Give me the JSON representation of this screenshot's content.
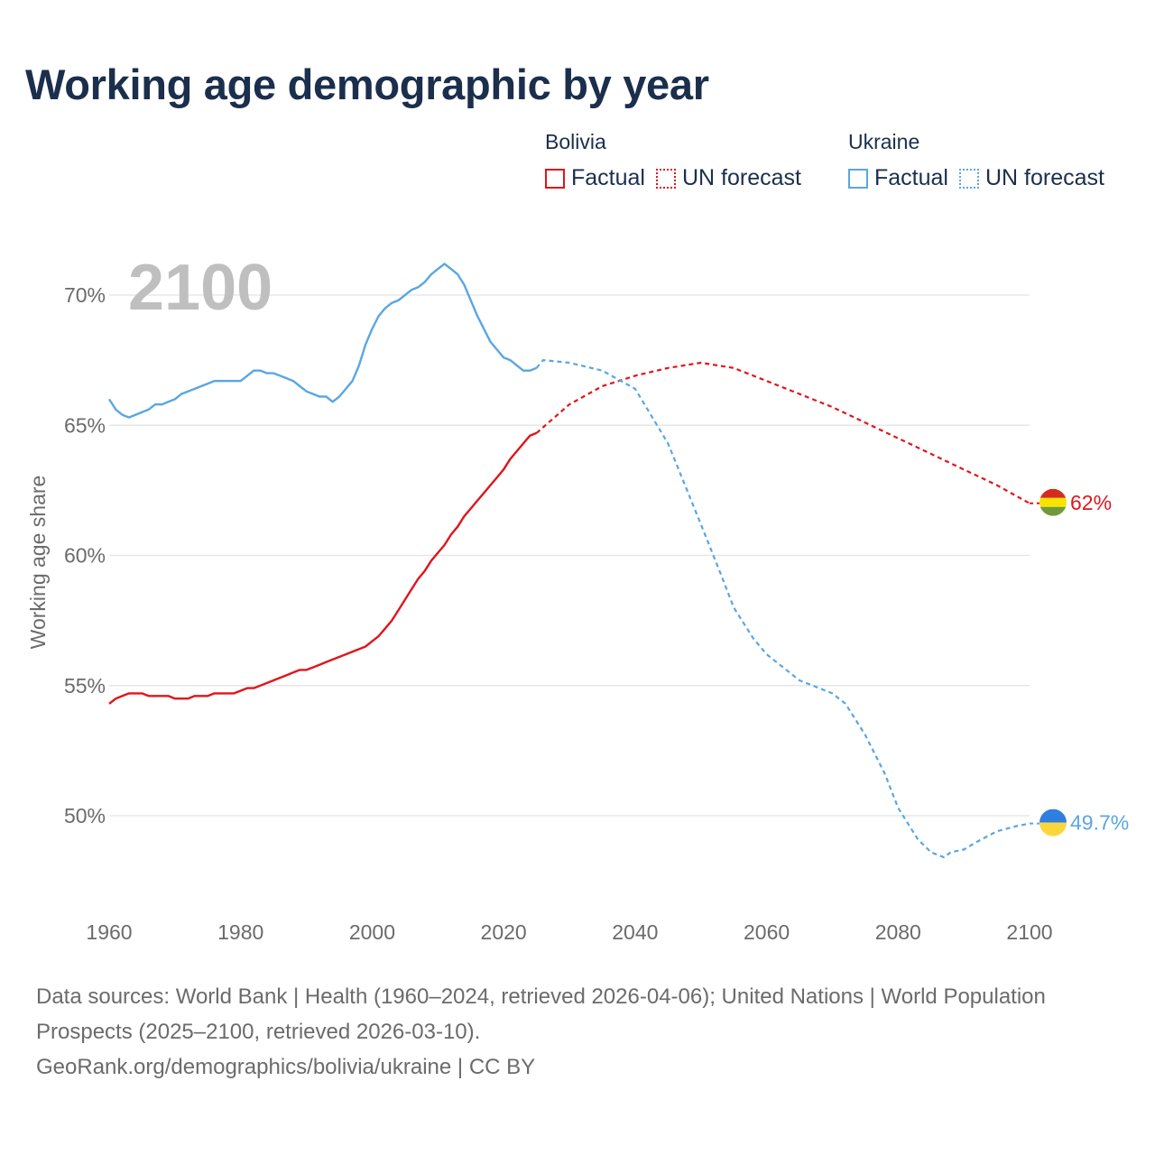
{
  "title": "Working age demographic by year",
  "legend": {
    "groups": [
      {
        "name": "Bolivia",
        "factual_label": "Factual",
        "forecast_label": "UN forecast",
        "color": "#e0151b"
      },
      {
        "name": "Ukraine",
        "factual_label": "Factual",
        "forecast_label": "UN forecast",
        "color": "#5aa6e3"
      }
    ]
  },
  "footer": {
    "sources": "Data sources: World Bank | Health (1960–2024, retrieved 2026-04-06); United Nations | World Population Prospects (2025–2100, retrieved 2026-03-10).",
    "credit": "GeoRank.org/demographics/bolivia/ukraine | CC BY"
  },
  "chart_data": {
    "type": "line",
    "title": "Working age demographic by year",
    "year_label": "2100",
    "xlabel": "",
    "ylabel": "Working age share",
    "xlim": [
      1960,
      2100
    ],
    "ylim": [
      47,
      72.5
    ],
    "x_ticks": [
      1960,
      1980,
      2000,
      2020,
      2040,
      2060,
      2080,
      2100
    ],
    "y_ticks": [
      50,
      55,
      60,
      65,
      70
    ],
    "y_tick_labels": [
      "50%",
      "55%",
      "60%",
      "65%",
      "70%"
    ],
    "x_tick_labels": [
      "1960",
      "1980",
      "2000",
      "2020",
      "2040",
      "2060",
      "2080",
      "2100"
    ],
    "grid": true,
    "series": [
      {
        "name": "Bolivia",
        "color": "#e0151b",
        "end_label": "62%",
        "factual": {
          "x": [
            1960,
            1961,
            1962,
            1963,
            1964,
            1965,
            1966,
            1967,
            1968,
            1969,
            1970,
            1971,
            1972,
            1973,
            1974,
            1975,
            1976,
            1977,
            1978,
            1979,
            1980,
            1981,
            1982,
            1983,
            1984,
            1985,
            1986,
            1987,
            1988,
            1989,
            1990,
            1991,
            1992,
            1993,
            1994,
            1995,
            1996,
            1997,
            1998,
            1999,
            2000,
            2001,
            2002,
            2003,
            2004,
            2005,
            2006,
            2007,
            2008,
            2009,
            2010,
            2011,
            2012,
            2013,
            2014,
            2015,
            2016,
            2017,
            2018,
            2019,
            2020,
            2021,
            2022,
            2023,
            2024,
            2025
          ],
          "y": [
            54.3,
            54.5,
            54.6,
            54.7,
            54.7,
            54.7,
            54.6,
            54.6,
            54.6,
            54.6,
            54.5,
            54.5,
            54.5,
            54.6,
            54.6,
            54.6,
            54.7,
            54.7,
            54.7,
            54.7,
            54.8,
            54.9,
            54.9,
            55.0,
            55.1,
            55.2,
            55.3,
            55.4,
            55.5,
            55.6,
            55.6,
            55.7,
            55.8,
            55.9,
            56.0,
            56.1,
            56.2,
            56.3,
            56.4,
            56.5,
            56.7,
            56.9,
            57.2,
            57.5,
            57.9,
            58.3,
            58.7,
            59.1,
            59.4,
            59.8,
            60.1,
            60.4,
            60.8,
            61.1,
            61.5,
            61.8,
            62.1,
            62.4,
            62.7,
            63.0,
            63.3,
            63.7,
            64.0,
            64.3,
            64.6,
            64.7
          ]
        },
        "forecast": {
          "x": [
            2025,
            2030,
            2035,
            2040,
            2045,
            2050,
            2055,
            2060,
            2065,
            2070,
            2075,
            2080,
            2085,
            2090,
            2095,
            2100
          ],
          "y": [
            64.7,
            65.8,
            66.5,
            66.9,
            67.2,
            67.4,
            67.2,
            66.7,
            66.2,
            65.7,
            65.1,
            64.5,
            63.9,
            63.3,
            62.7,
            62.0
          ]
        }
      },
      {
        "name": "Ukraine",
        "color": "#5aa6e3",
        "end_label": "49.7%",
        "factual": {
          "x": [
            1960,
            1961,
            1962,
            1963,
            1964,
            1965,
            1966,
            1967,
            1968,
            1969,
            1970,
            1971,
            1972,
            1973,
            1974,
            1975,
            1976,
            1977,
            1978,
            1979,
            1980,
            1981,
            1982,
            1983,
            1984,
            1985,
            1986,
            1987,
            1988,
            1989,
            1990,
            1991,
            1992,
            1993,
            1994,
            1995,
            1996,
            1997,
            1998,
            1999,
            2000,
            2001,
            2002,
            2003,
            2004,
            2005,
            2006,
            2007,
            2008,
            2009,
            2010,
            2011,
            2012,
            2013,
            2014,
            2015,
            2016,
            2017,
            2018,
            2019,
            2020,
            2021,
            2022,
            2023,
            2024,
            2025
          ],
          "y": [
            66.0,
            65.6,
            65.4,
            65.3,
            65.4,
            65.5,
            65.6,
            65.8,
            65.8,
            65.9,
            66.0,
            66.2,
            66.3,
            66.4,
            66.5,
            66.6,
            66.7,
            66.7,
            66.7,
            66.7,
            66.7,
            66.9,
            67.1,
            67.1,
            67.0,
            67.0,
            66.9,
            66.8,
            66.7,
            66.5,
            66.3,
            66.2,
            66.1,
            66.1,
            65.9,
            66.1,
            66.4,
            66.7,
            67.3,
            68.1,
            68.7,
            69.2,
            69.5,
            69.7,
            69.8,
            70.0,
            70.2,
            70.3,
            70.5,
            70.8,
            71.0,
            71.2,
            71.0,
            70.8,
            70.4,
            69.8,
            69.2,
            68.7,
            68.2,
            67.9,
            67.6,
            67.5,
            67.3,
            67.1,
            67.1,
            67.2
          ]
        },
        "forecast": {
          "x": [
            2025,
            2026,
            2030,
            2035,
            2040,
            2045,
            2050,
            2053,
            2055,
            2058,
            2060,
            2063,
            2065,
            2070,
            2072,
            2075,
            2078,
            2080,
            2083,
            2085,
            2087,
            2088,
            2090,
            2092,
            2095,
            2098,
            2100
          ],
          "y": [
            67.2,
            67.5,
            67.4,
            67.1,
            66.4,
            64.3,
            61.2,
            59.3,
            58.0,
            56.8,
            56.2,
            55.6,
            55.2,
            54.7,
            54.3,
            53.1,
            51.6,
            50.3,
            49.1,
            48.6,
            48.4,
            48.6,
            48.7,
            49.0,
            49.4,
            49.6,
            49.7
          ]
        }
      }
    ]
  }
}
